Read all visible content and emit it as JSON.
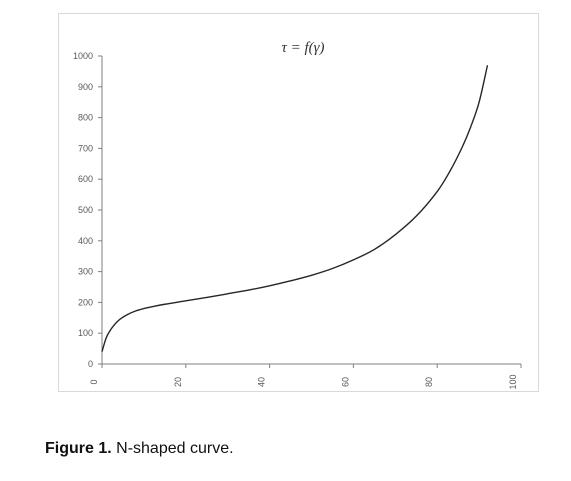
{
  "chart_data": {
    "type": "line",
    "title": "τ = f(γ)",
    "xlabel": "",
    "ylabel": "",
    "xlim": [
      0,
      100
    ],
    "ylim": [
      0,
      1000
    ],
    "x_ticks": [
      "0",
      "20",
      "40",
      "60",
      "80",
      "100"
    ],
    "y_ticks": [
      "0",
      "100",
      "200",
      "300",
      "400",
      "500",
      "600",
      "700",
      "800",
      "900",
      "1000"
    ],
    "grid": false,
    "legend": "none",
    "series": [
      {
        "color": "#262626",
        "x": [
          0,
          1,
          2,
          3,
          4,
          5,
          6,
          8,
          10,
          12,
          15,
          20,
          25,
          30,
          35,
          40,
          45,
          50,
          55,
          60,
          65,
          70,
          75,
          80,
          83,
          86,
          88,
          90,
          92
        ],
        "y": [
          40,
          85,
          110,
          128,
          142,
          152,
          160,
          172,
          180,
          186,
          194,
          205,
          216,
          228,
          240,
          254,
          270,
          288,
          310,
          338,
          372,
          420,
          480,
          560,
          625,
          705,
          770,
          850,
          970
        ]
      }
    ]
  },
  "caption": {
    "label": "Figure 1.",
    "text": "N-shaped curve."
  }
}
